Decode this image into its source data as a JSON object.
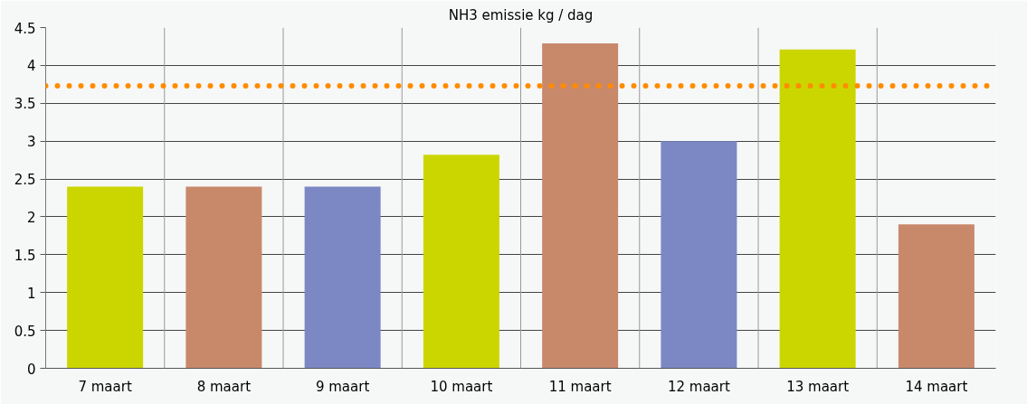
{
  "chart_data": {
    "type": "bar",
    "title": "NH3 emissie kg / dag",
    "categories": [
      "7 maart",
      "8 maart",
      "9 maart",
      "10 maart",
      "11 maart",
      "12 maart",
      "13 maart",
      "14 maart"
    ],
    "values": [
      2.4,
      2.4,
      2.4,
      2.82,
      4.29,
      3.0,
      4.21,
      1.9
    ],
    "colors": [
      "#cbd600",
      "#c8896b",
      "#7b88c4",
      "#cbd600",
      "#c8896b",
      "#7b88c4",
      "#cbd600",
      "#c8896b"
    ],
    "ylim": [
      0,
      4.5
    ],
    "yticks": [
      0,
      {
        "value": 0.5,
        "label": "0.5"
      },
      1,
      {
        "value": 1.5,
        "label": "1.5"
      },
      2,
      {
        "value": 2.5,
        "label": "2.5"
      },
      3,
      {
        "value": 3.5,
        "label": "3.5"
      },
      4,
      {
        "value": 4.5,
        "label": "4.5"
      }
    ],
    "grid": true,
    "ref_lines": [
      {
        "axis": "y",
        "value": 3.73,
        "color": "#ff8c00",
        "line_style": "dotted"
      }
    ]
  }
}
